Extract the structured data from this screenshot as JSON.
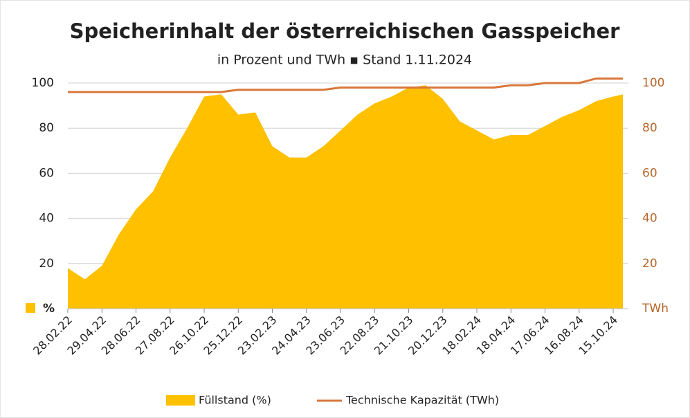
{
  "chart_data": {
    "type": "area",
    "title": "Speicherinhalt der österreichischen Gasspeicher",
    "subtitle": "in Prozent und TWh ▪ Stand 1.11.2024",
    "y_unit": "%",
    "y2_unit": "TWh",
    "x": [
      "28.02.22",
      "30.03.22",
      "29.04.22",
      "29.05.22",
      "28.06.22",
      "28.07.22",
      "27.08.22",
      "26.09.22",
      "26.10.22",
      "25.11.22",
      "25.12.22",
      "24.01.23",
      "23.02.23",
      "25.03.23",
      "24.04.23",
      "24.05.23",
      "23.06.23",
      "23.07.23",
      "22.08.23",
      "21.09.23",
      "21.10.23",
      "20.11.23",
      "20.12.23",
      "19.01.24",
      "18.02.24",
      "19.03.24",
      "18.04.24",
      "18.05.24",
      "17.06.24",
      "17.07.24",
      "16.08.24",
      "15.09.24",
      "15.10.24",
      "01.11.24"
    ],
    "xlim": [
      "28.02.22",
      "01.11.24"
    ],
    "xticks": [
      "28.02.22",
      "29.04.22",
      "28.06.22",
      "27.08.22",
      "26.10.22",
      "25.12.22",
      "23.02.23",
      "24.04.23",
      "23.06.23",
      "22.08.23",
      "21.10.23",
      "20.12.23",
      "18.02.24",
      "18.04.24",
      "17.06.24",
      "16.08.24",
      "15.10.24"
    ],
    "series": [
      {
        "name": "Füllstand (%)",
        "color": "#ffc000",
        "axis": "y",
        "values": [
          18,
          13,
          19,
          33,
          44,
          52,
          67,
          80,
          94,
          95,
          86,
          87,
          72,
          67,
          67,
          72,
          79,
          86,
          91,
          94,
          98,
          99,
          93,
          83,
          79,
          75,
          77,
          77,
          81,
          85,
          88,
          92,
          94,
          95
        ]
      },
      {
        "name": "Technische Kapazität (TWh)",
        "color": "#d9773a",
        "axis": "y2",
        "values": [
          96,
          96,
          96,
          96,
          96,
          96,
          96,
          96,
          96,
          96,
          97,
          97,
          97,
          97,
          97,
          97,
          98,
          98,
          98,
          98,
          98,
          98,
          98,
          98,
          98,
          98,
          99,
          99,
          100,
          100,
          100,
          102,
          102,
          102
        ]
      }
    ],
    "ylim": [
      0,
      100
    ],
    "yticks": [
      20,
      40,
      60,
      80,
      100
    ],
    "y2lim": [
      0,
      100
    ],
    "y2ticks": [
      20,
      40,
      60,
      80,
      100
    ],
    "grid": true,
    "legend": "bottom"
  }
}
